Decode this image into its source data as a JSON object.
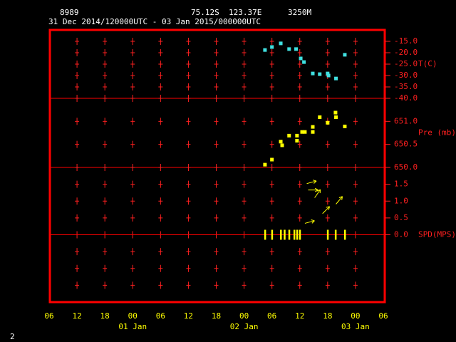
{
  "header": {
    "station": "8989",
    "latitude": "75.12S",
    "longitude": "123.37E",
    "elevation": "3250M",
    "period": "31 Dec 2014/120000UTC - 03 Jan 2015/000000UTC"
  },
  "page_number": "2",
  "chart_data": [
    {
      "type": "scatter",
      "ylabel": "T(C)",
      "ylim": [
        -40,
        -10
      ],
      "yticks": [
        {
          "value": -15,
          "label": "-15.0"
        },
        {
          "value": -20,
          "label": "-20.0"
        },
        {
          "value": -25,
          "label": "-25.0"
        },
        {
          "value": -30,
          "label": "-30.0"
        },
        {
          "value": -35,
          "label": "-35.0"
        },
        {
          "value": -40,
          "label": "-40.0"
        }
      ],
      "series": [
        {
          "color": "#40e0e0",
          "x": [
            46.5,
            48.0,
            49.9,
            51.7,
            53.2,
            54.2,
            54.9,
            56.8,
            58.3,
            60.0,
            60.2,
            61.8,
            63.7
          ],
          "values": [
            -18.8,
            -17.5,
            -15.9,
            -18.4,
            -18.4,
            -22.5,
            -24.1,
            -29.1,
            -29.4,
            -29.1,
            -30.0,
            -31.3,
            -20.9
          ]
        }
      ]
    },
    {
      "type": "scatter",
      "ylabel": "Pre (mb)",
      "ylim": [
        650.0,
        651.5
      ],
      "yticks": [
        {
          "value": 651,
          "label": "651.0"
        },
        {
          "value": 650.5,
          "label": "650.5"
        },
        {
          "value": 650,
          "label": "650.0"
        }
      ],
      "series": [
        {
          "color": "#ffff00",
          "x": [
            46.5,
            48.0,
            49.9,
            50.2,
            51.7,
            53.4,
            53.4,
            54.5,
            55.1,
            56.8,
            56.8,
            58.3,
            60.0,
            61.7,
            61.8,
            63.7
          ],
          "values": [
            650.06,
            650.17,
            650.56,
            650.48,
            650.69,
            650.69,
            650.58,
            650.77,
            650.77,
            650.88,
            650.77,
            651.09,
            650.97,
            651.19,
            651.09,
            650.89
          ]
        }
      ]
    },
    {
      "type": "wind",
      "ylabel": "SPD(MPS)",
      "ylim": [
        -2,
        2
      ],
      "yticks": [
        {
          "value": 1.5,
          "label": "1.5"
        },
        {
          "value": 1,
          "label": "1.0"
        },
        {
          "value": 0.5,
          "label": "0.5"
        },
        {
          "value": 0,
          "label": "0.0"
        }
      ],
      "xlim": [
        0,
        72
      ],
      "xticks": [
        {
          "value": 0,
          "label": "06"
        },
        {
          "value": 6,
          "label": "12"
        },
        {
          "value": 12,
          "label": "18"
        },
        {
          "value": 18,
          "label": "00"
        },
        {
          "value": 24,
          "label": "06"
        },
        {
          "value": 30,
          "label": "12"
        },
        {
          "value": 36,
          "label": "18"
        },
        {
          "value": 42,
          "label": "00"
        },
        {
          "value": 48,
          "label": "06"
        },
        {
          "value": 54,
          "label": "12"
        },
        {
          "value": 60,
          "label": "18"
        },
        {
          "value": 66,
          "label": "00"
        },
        {
          "value": 72,
          "label": "06"
        }
      ],
      "day_labels": [
        {
          "value": 18,
          "label": "01 Jan"
        },
        {
          "value": 42,
          "label": "02 Jan"
        },
        {
          "value": 66,
          "label": "03 Jan"
        }
      ],
      "series": [
        {
          "color": "#ffff00",
          "x": [
            55.5,
            55.8,
            57.2,
            61.8,
            58.9,
            55.1
          ],
          "values": [
            1.52,
            1.33,
            1.1,
            0.91,
            0.63,
            0.34
          ],
          "direction": [
            15,
            0,
            55,
            50,
            45,
            15
          ]
        },
        {
          "color": "#ffff00",
          "x": [
            46.5,
            48.0,
            49.9,
            50.7,
            51.7,
            52.8,
            53.4,
            54.0,
            60.0,
            61.7,
            63.7
          ],
          "values": [
            0,
            0,
            0,
            0,
            0,
            0,
            0,
            0,
            0,
            0,
            0
          ]
        }
      ]
    }
  ]
}
